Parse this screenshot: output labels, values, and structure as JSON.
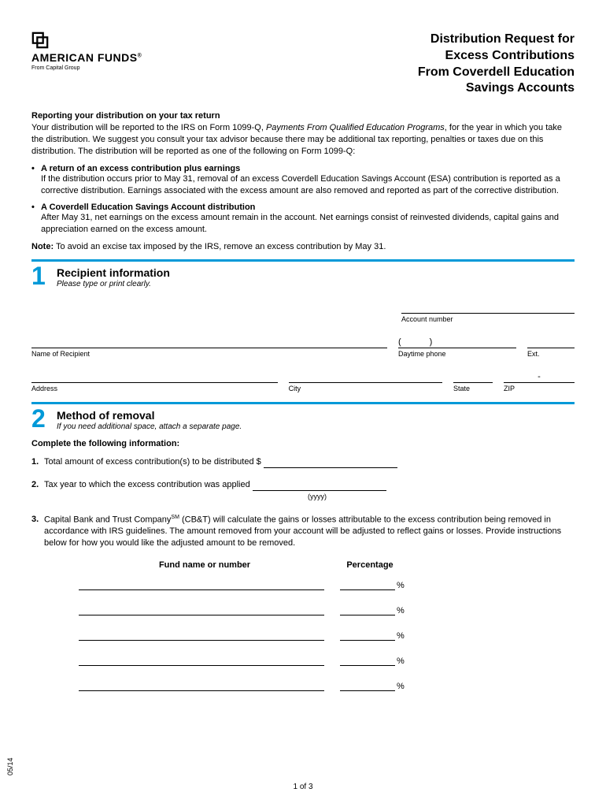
{
  "colors": {
    "accent": "#0099d8",
    "text": "#000000",
    "bg": "#ffffff"
  },
  "brand": {
    "name": "AMERICAN FUNDS",
    "reg": "®",
    "sub": "From Capital Group"
  },
  "title": {
    "l1": "Distribution Request for",
    "l2": "Excess Contributions",
    "l3": "From Coverdell Education",
    "l4": "Savings Accounts"
  },
  "intro": {
    "heading": "Reporting your distribution on your tax return",
    "p1a": "Your distribution will be reported to the IRS on Form 1099-Q, ",
    "p1i": "Payments From Qualified Education Programs",
    "p1b": ", for the year in which you take the distribution. We suggest you consult your tax advisor because there may be additional tax reporting, penalties or taxes due on this distribution. The distribution will be reported as one of the following on Form 1099-Q:"
  },
  "bullets": [
    {
      "title": "A return of an excess contribution plus earnings",
      "text": "If the distribution occurs prior to May 31, removal of an excess Coverdell Education Savings Account (ESA) contribution is reported as a corrective distribution. Earnings associated with the excess amount are also removed and reported as part of the corrective distribution."
    },
    {
      "title": "A Coverdell Education Savings Account distribution",
      "text": "After May 31, net earnings on the excess amount remain in the account. Net earnings consist of reinvested dividends, capital gains and appreciation earned on the excess amount."
    }
  ],
  "note": {
    "label": "Note:",
    "text": " To avoid an excise tax imposed by the IRS, remove an excess contribution by May 31."
  },
  "section1": {
    "num": "1",
    "title": "Recipient information",
    "instr": "Please type or print clearly.",
    "labels": {
      "account": "Account number",
      "name": "Name of Recipient",
      "phone": "Daytime phone",
      "ext": "Ext.",
      "address": "Address",
      "city": "City",
      "state": "State",
      "zip": "ZIP"
    },
    "phone_paren_l": "(",
    "phone_paren_r": ")"
  },
  "section2": {
    "num": "2",
    "title": "Method of removal",
    "instr": "If you need additional space, attach a separate page.",
    "complete": "Complete the following information:",
    "items": {
      "n1": "1.",
      "t1": "Total amount of excess contribution(s) to be distributed $ ",
      "n2": "2.",
      "t2": "Tax year to which the excess contribution was applied ",
      "yyyy": "(yyyy)",
      "n3": "3.",
      "t3a": "Capital Bank and Trust Company",
      "t3sm": "SM",
      "t3b": " (CB&T) will calculate the gains or losses attributable to the excess contribution being removed in accordance with IRS guidelines. The amount removed from your account will be adjusted to reflect gains or losses. Provide instructions below for how you would like the adjusted amount to be removed."
    },
    "table": {
      "h1": "Fund name or number",
      "h2": "Percentage",
      "pct": "%",
      "rows": 5
    }
  },
  "footer": {
    "page": "1 of 3",
    "code": "05/14"
  }
}
